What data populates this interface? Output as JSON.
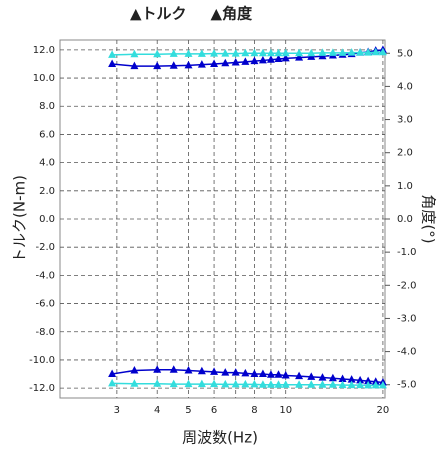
{
  "chart_data": {
    "type": "line",
    "x_label": "周波数(Hz)",
    "y_label": "トルク(N-m)",
    "y2_label": "角度(°)",
    "xscale": "log",
    "xlim": [
      2.0,
      20.3
    ],
    "xticks": [
      3,
      4,
      5,
      6,
      8,
      10,
      20
    ],
    "xgrid_minor": [
      7,
      9
    ],
    "ylim": [
      -12.7,
      12.7
    ],
    "yticks": [
      {
        "value": 12,
        "label": "12.0"
      },
      {
        "value": 10,
        "label": "10.0"
      },
      {
        "value": 8,
        "label": "8.0"
      },
      {
        "value": 6,
        "label": "6.0"
      },
      {
        "value": 4,
        "label": "4.0"
      },
      {
        "value": 2,
        "label": "2.0"
      },
      {
        "value": 0,
        "label": "0.0"
      },
      {
        "value": -2,
        "label": "-2.0"
      },
      {
        "value": -4,
        "label": "-4.0"
      },
      {
        "value": -6,
        "label": "-6.0"
      },
      {
        "value": -8,
        "label": "-8.0"
      },
      {
        "value": -10,
        "label": "-10.0"
      },
      {
        "value": -12,
        "label": "-12.0"
      }
    ],
    "y2lim": [
      -5.4,
      5.4
    ],
    "y2ticks": [
      {
        "value": 5,
        "label": "5.0"
      },
      {
        "value": 4,
        "label": "4.0"
      },
      {
        "value": 3,
        "label": "3.0"
      },
      {
        "value": 2,
        "label": "2.0"
      },
      {
        "value": 1,
        "label": "1.0"
      },
      {
        "value": 0,
        "label": "0.0"
      },
      {
        "value": -1,
        "label": "-1.0"
      },
      {
        "value": -2,
        "label": "-2.0"
      },
      {
        "value": -3,
        "label": "-3.0"
      },
      {
        "value": -4,
        "label": "-4.0"
      },
      {
        "value": -5,
        "label": "-5.0"
      }
    ],
    "grid": true,
    "x": [
      2.9,
      3.4,
      4,
      4.5,
      5,
      5.5,
      6,
      6.5,
      7,
      7.5,
      8,
      8.5,
      9,
      9.5,
      10,
      11,
      12,
      13,
      14,
      15,
      16,
      17,
      18,
      19,
      20,
      null,
      2.9,
      3.4,
      4,
      4.5,
      5,
      5.5,
      6,
      6.5,
      7,
      7.5,
      8,
      8.5,
      9,
      9.5,
      10,
      11,
      12,
      13,
      14,
      15,
      16,
      17,
      18,
      19,
      20
    ],
    "series": [
      {
        "name": "▲トルク",
        "color": "#0000cc",
        "axis": "y",
        "values": [
          11.0,
          10.85,
          10.85,
          10.87,
          10.9,
          10.95,
          11.0,
          11.05,
          11.1,
          11.15,
          11.2,
          11.25,
          11.3,
          11.35,
          11.4,
          11.45,
          11.5,
          11.55,
          11.6,
          11.65,
          11.7,
          11.8,
          11.85,
          11.95,
          12.0,
          null,
          -11.0,
          -10.75,
          -10.7,
          -10.7,
          -10.75,
          -10.8,
          -10.85,
          -10.9,
          -10.9,
          -10.95,
          -11.0,
          -11.0,
          -11.05,
          -11.05,
          -11.1,
          -11.15,
          -11.2,
          -11.25,
          -11.3,
          -11.35,
          -11.4,
          -11.45,
          -11.5,
          -11.55,
          -11.6
        ]
      },
      {
        "name": "▲角度",
        "color": "#33dddd",
        "axis": "y2",
        "values": [
          4.95,
          4.97,
          4.97,
          4.98,
          4.98,
          4.98,
          4.99,
          4.99,
          4.99,
          5.0,
          5.0,
          5.0,
          5.0,
          5.0,
          5.0,
          5.0,
          5.0,
          5.01,
          5.01,
          5.01,
          5.02,
          5.02,
          5.02,
          5.03,
          5.03,
          null,
          -4.96,
          -4.97,
          -4.97,
          -4.98,
          -4.98,
          -4.98,
          -4.98,
          -4.99,
          -4.99,
          -4.99,
          -4.99,
          -5.0,
          -5.0,
          -5.0,
          -5.0,
          -5.0,
          -5.0,
          -5.0,
          -5.0,
          -5.01,
          -5.01,
          -5.01,
          -5.02,
          -5.02,
          -5.02
        ]
      }
    ]
  }
}
